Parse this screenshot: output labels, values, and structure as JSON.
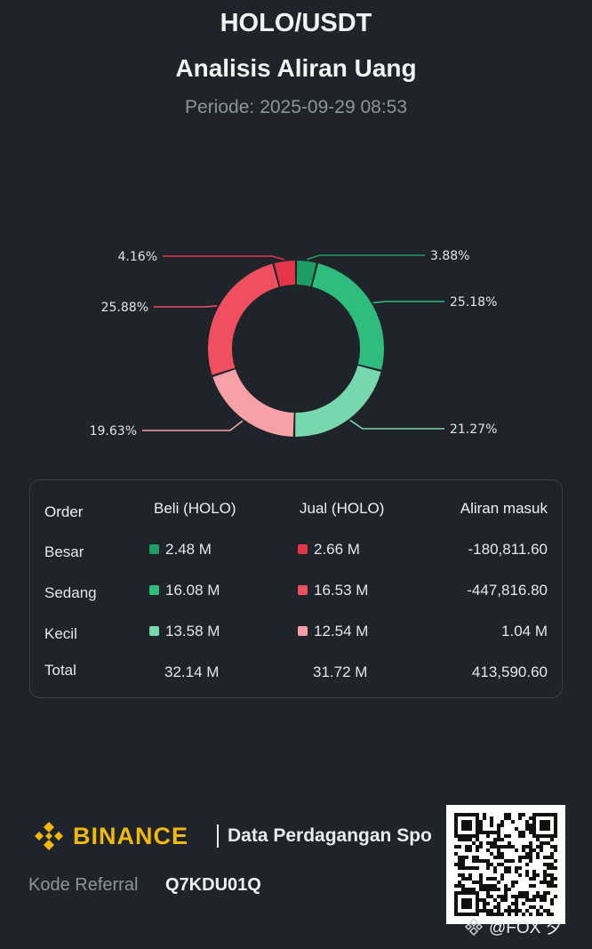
{
  "header": {
    "pair": "HOLO/USDT",
    "title": "Analisis Aliran Uang",
    "period_label": "Periode:",
    "period_value": "2025-09-29 08:53"
  },
  "colors": {
    "buy_large": "#1e9e63",
    "buy_medium": "#2ebd7c",
    "buy_small": "#78d8ad",
    "sell_small": "#f7a0a7",
    "sell_medium": "#ef4f5f",
    "sell_large": "#e63449",
    "brand": "#f0b90b",
    "background": "#1f232a"
  },
  "chart_data": {
    "type": "pie",
    "donut": true,
    "slices": [
      {
        "label": "3.88%",
        "value": 3.88,
        "color": "#1e9e63"
      },
      {
        "label": "25.18%",
        "value": 25.18,
        "color": "#2ebd7c"
      },
      {
        "label": "21.27%",
        "value": 21.27,
        "color": "#78d8ad"
      },
      {
        "label": "19.63%",
        "value": 19.63,
        "color": "#f7a0a7"
      },
      {
        "label": "25.88%",
        "value": 25.88,
        "color": "#ef4f5f"
      },
      {
        "label": "4.16%",
        "value": 4.16,
        "color": "#e63449"
      }
    ]
  },
  "table": {
    "headers": [
      "Order",
      "Beli (HOLO)",
      "Jual (HOLO)",
      "Aliran masuk"
    ],
    "rows": [
      {
        "label": "Besar",
        "buy": "2.48 M",
        "buy_color": "#1e9e63",
        "sell": "2.66 M",
        "sell_color": "#e63449",
        "flow": "-180,811.60"
      },
      {
        "label": "Sedang",
        "buy": "16.08 M",
        "buy_color": "#2ebd7c",
        "sell": "16.53 M",
        "sell_color": "#ef4f5f",
        "flow": "-447,816.80"
      },
      {
        "label": "Kecil",
        "buy": "13.58 M",
        "buy_color": "#78d8ad",
        "sell": "12.54 M",
        "sell_color": "#f7a0a7",
        "flow": "1.04 M"
      }
    ],
    "total": {
      "label": "Total",
      "buy": "32.14 M",
      "sell": "31.72 M",
      "flow": "413,590.60"
    }
  },
  "footer": {
    "brand": "BINANCE",
    "tagline": "Data Perdagangan Spo",
    "referral_label": "Kode Referral",
    "referral_code": "Q7KDU01Q",
    "watermark": "@FOX 夕",
    "logo_icon": "binance-diamond-icon",
    "qr_icon": "qr-code-icon"
  }
}
